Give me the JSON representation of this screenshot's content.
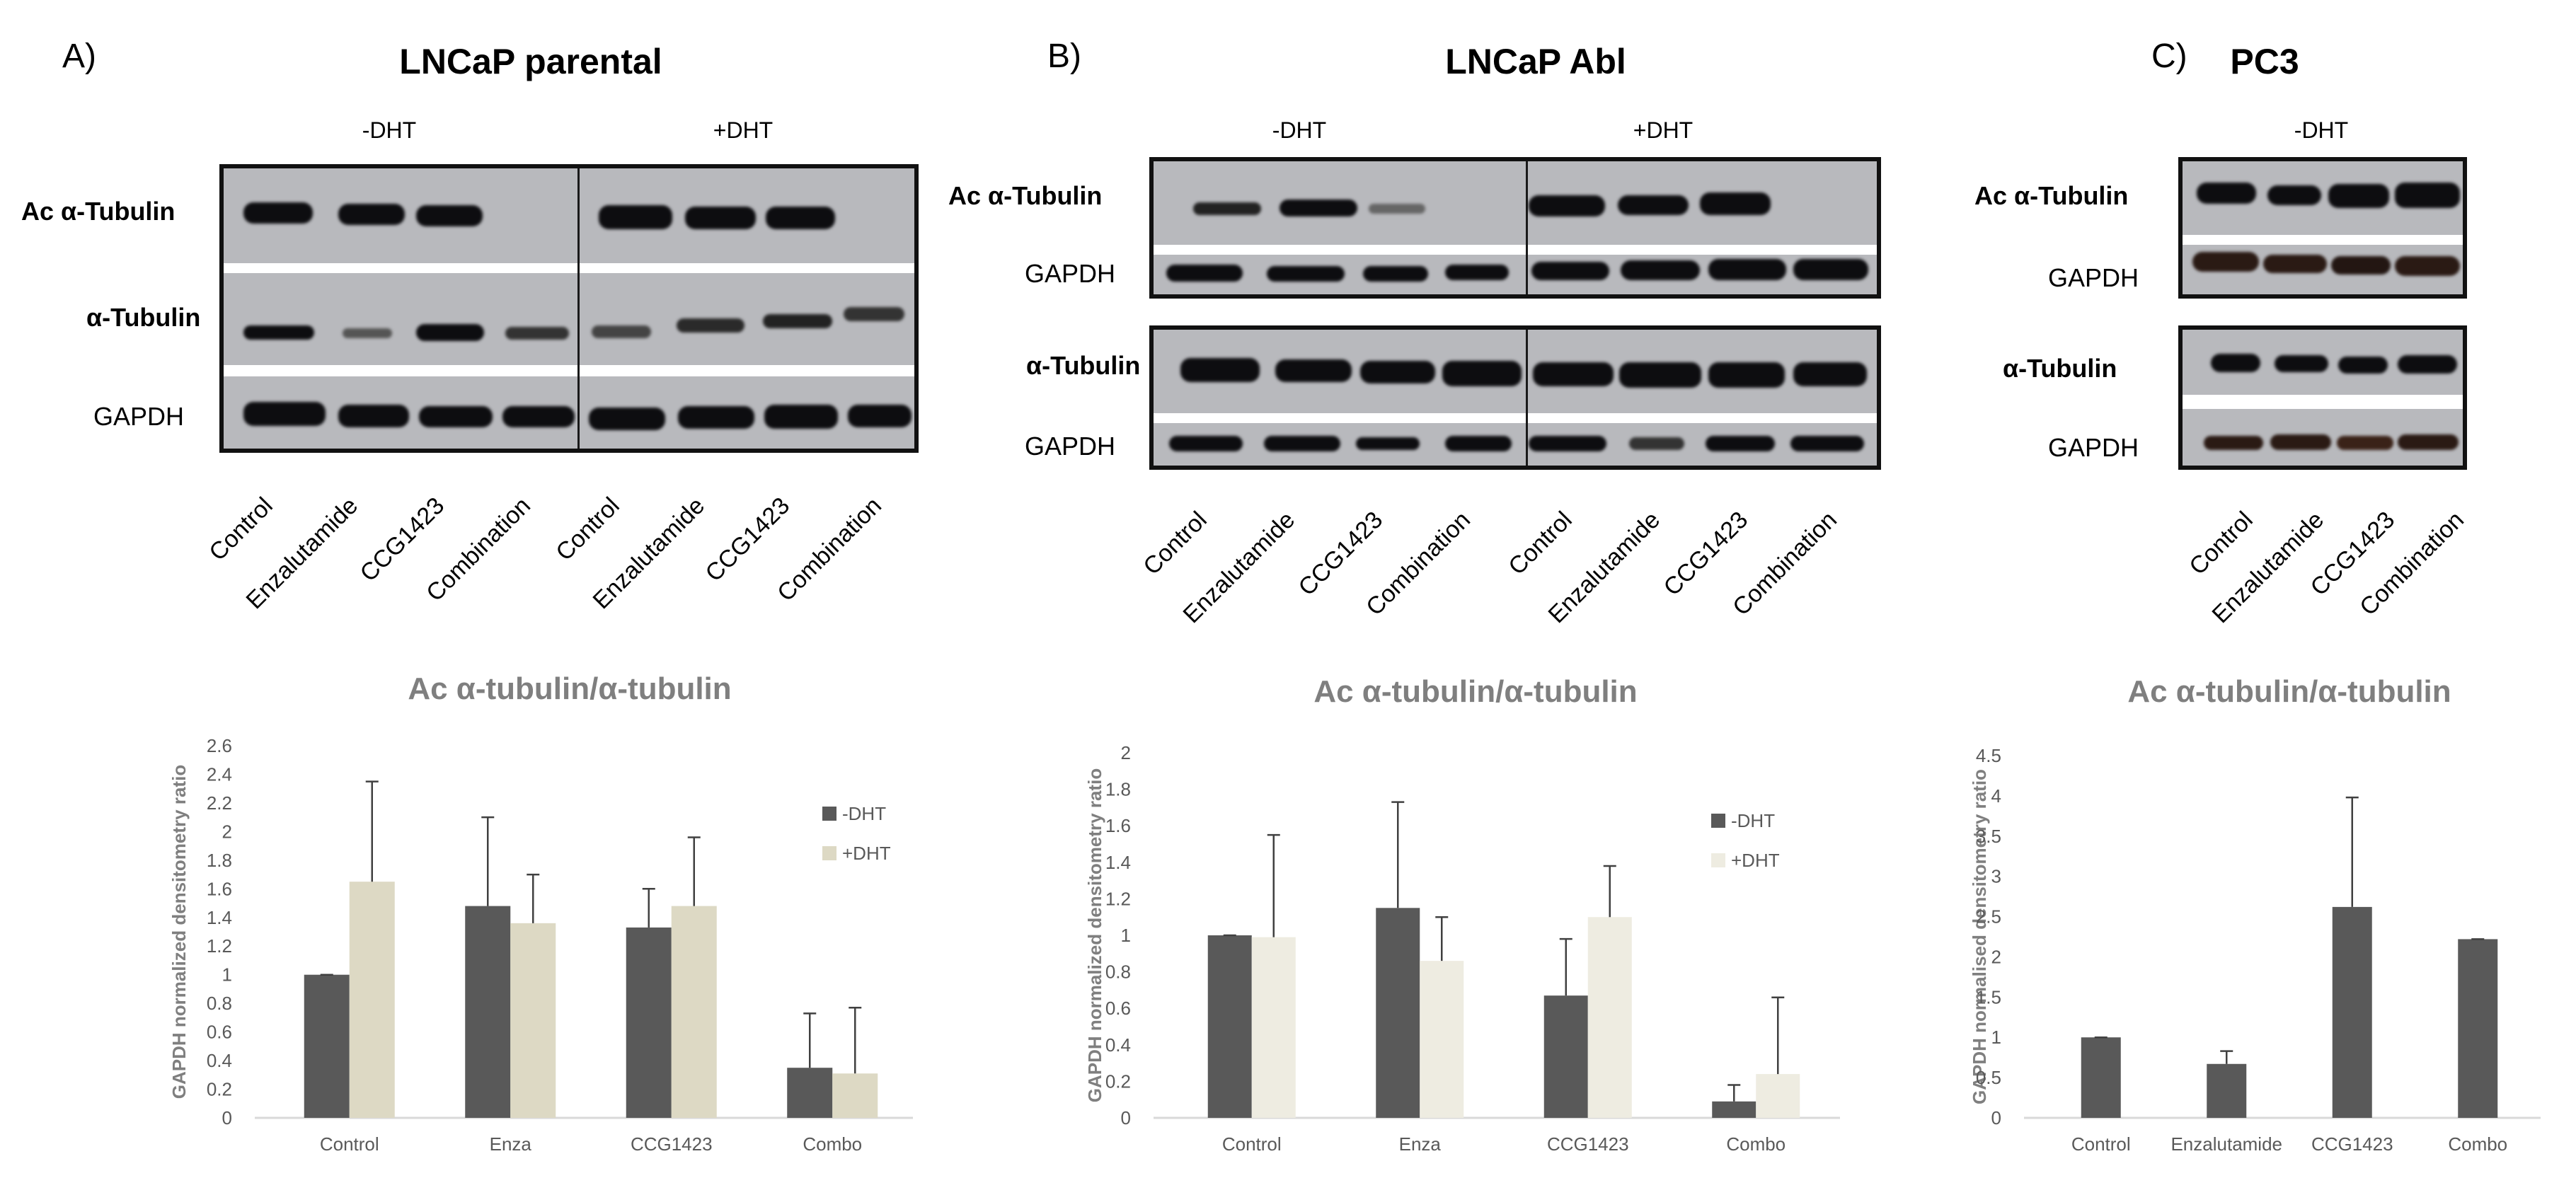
{
  "panels": [
    {
      "letter": "A)",
      "title": "LNCaP parental",
      "conditions": [
        "-DHT",
        "+DHT"
      ],
      "rows": [
        "Ac α-Tubulin",
        "α-Tubulin",
        "GAPDH"
      ],
      "lanes": [
        "Control",
        "Enzalutamide",
        "CCG1423",
        "Combination",
        "Control",
        "Enzalutamide",
        "CCG1423",
        "Combination"
      ]
    },
    {
      "letter": "B)",
      "title": "LNCaP Abl",
      "conditions": [
        "-DHT",
        "+DHT"
      ],
      "rows": [
        "Ac α-Tubulin",
        "GAPDH",
        "α-Tubulin",
        "GAPDH"
      ],
      "lanes": [
        "Control",
        "Enzalutamide",
        "CCG1423",
        "Combination",
        "Control",
        "Enzalutamide",
        "CCG1423",
        "Combination"
      ]
    },
    {
      "letter": "C)",
      "title": "PC3",
      "conditions": [
        "-DHT"
      ],
      "rows": [
        "Ac α-Tubulin",
        "GAPDH",
        "α-Tubulin",
        "GAPDH"
      ],
      "lanes": [
        "Control",
        "Enzalutamide",
        "CCG1423",
        "Combination"
      ]
    }
  ],
  "chart_data": [
    {
      "type": "bar",
      "title": "Ac α-tubulin/α-tubulin",
      "xlabel": "",
      "ylabel": "GAPDH normalized densitometry ratio",
      "categories": [
        "Control",
        "Enza",
        "CCG1423",
        "Combo"
      ],
      "ylim": [
        0,
        2.6
      ],
      "yticks": [
        "0",
        "0.2",
        "0.4",
        "0.6",
        "0.8",
        "1",
        "1.2",
        "1.4",
        "1.6",
        "1.8",
        "2",
        "2.2",
        "2.4",
        "2.6"
      ],
      "legend_position": "right",
      "series": [
        {
          "name": "-DHT",
          "color": "#595959",
          "values": [
            1.0,
            1.48,
            1.33,
            0.35
          ],
          "errors": [
            0.0,
            0.62,
            0.27,
            0.38
          ]
        },
        {
          "name": "+DHT",
          "color": "#ddd9c4",
          "values": [
            1.65,
            1.36,
            1.48,
            0.31
          ],
          "errors": [
            0.7,
            0.34,
            0.48,
            0.46
          ]
        }
      ]
    },
    {
      "type": "bar",
      "title": "Ac α-tubulin/α-tubulin",
      "xlabel": "",
      "ylabel": "GAPDH normalized densitometry ratio",
      "categories": [
        "Control",
        "Enza",
        "CCG1423",
        "Combo"
      ],
      "ylim": [
        0,
        2
      ],
      "yticks": [
        "0",
        "0.2",
        "0.4",
        "0.6",
        "0.8",
        "1",
        "1.2",
        "1.4",
        "1.6",
        "1.8",
        "2"
      ],
      "legend_position": "right",
      "series": [
        {
          "name": "-DHT",
          "color": "#595959",
          "values": [
            1.0,
            1.15,
            0.67,
            0.09
          ],
          "errors": [
            0.0,
            0.58,
            0.31,
            0.09
          ]
        },
        {
          "name": "+DHT",
          "color": "#eeece1",
          "values": [
            0.99,
            0.86,
            1.1,
            0.24
          ],
          "errors": [
            0.56,
            0.24,
            0.28,
            0.42
          ]
        }
      ]
    },
    {
      "type": "bar",
      "title": "Ac α-tubulin/α-tubulin",
      "xlabel": "",
      "ylabel": "GAPDH normalised densitometry ratio",
      "categories": [
        "Control",
        "Enzalutamide",
        "CCG1423",
        "Combo"
      ],
      "ylim": [
        0,
        4.5
      ],
      "yticks": [
        "0",
        "0.5",
        "1",
        "1.5",
        "2",
        "2.5",
        "3",
        "3.5",
        "4",
        "4.5"
      ],
      "series": [
        {
          "color": "#595959",
          "values": [
            1.0,
            0.67,
            2.62,
            2.22
          ],
          "errors": [
            0.0,
            0.16,
            1.36,
            0.0
          ]
        }
      ]
    }
  ]
}
